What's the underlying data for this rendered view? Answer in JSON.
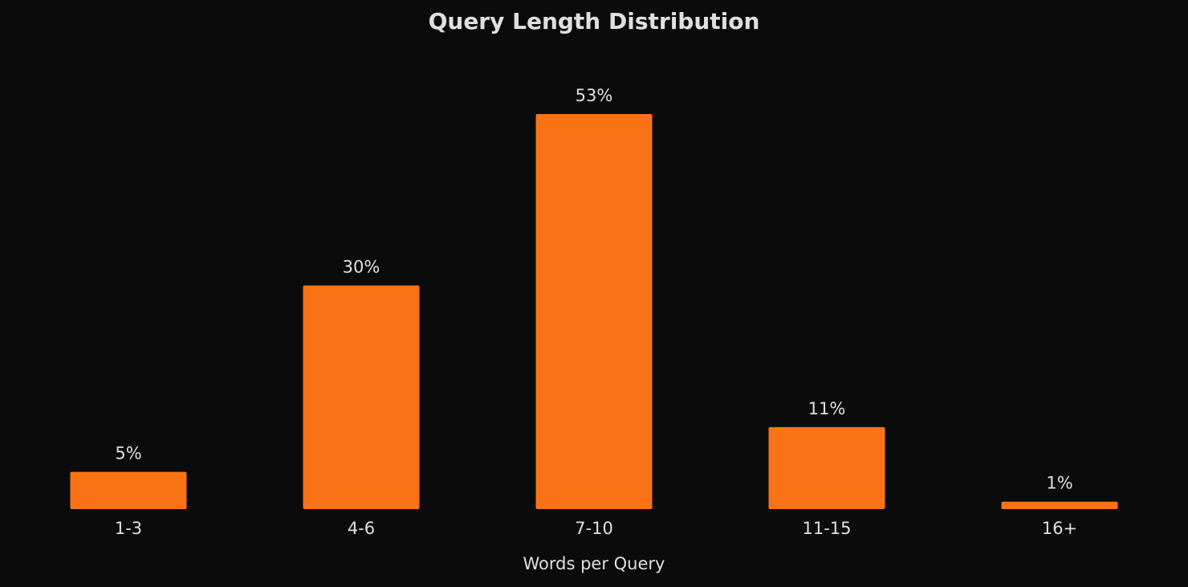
{
  "chart_data": {
    "type": "bar",
    "title": "Query Length Distribution",
    "x_label": "Words per Query",
    "categories": [
      "1-3",
      "4-6",
      "7-10",
      "11-15",
      "16+"
    ],
    "values": [
      5,
      30,
      53,
      11,
      1
    ],
    "value_labels": [
      "5%",
      "30%",
      "53%",
      "11%",
      "1%"
    ],
    "color": "#f97316"
  }
}
